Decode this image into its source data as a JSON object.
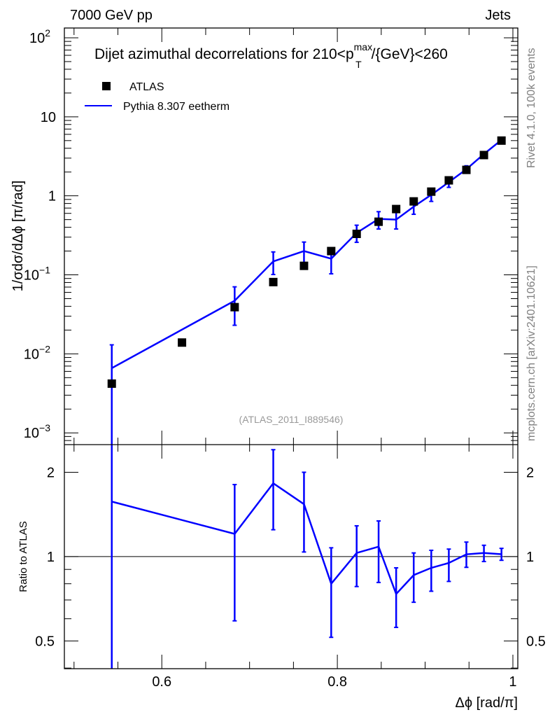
{
  "header": {
    "left": "7000 GeV pp",
    "right": "Jets"
  },
  "side": {
    "rivet": "Rivet 4.1.0,  100k events",
    "mcplots": "mcplots.cern.ch [arXiv:2401.10621]"
  },
  "chart_data": {
    "type": "scatter",
    "title": "Dijet azimuthal decorrelations for 210<p",
    "title_sup": "max",
    "title_sub": "T",
    "title_rest": "/{GeV}<260",
    "analysis": "(ATLAS_2011_I889546)",
    "xlabel": "Δϕ [rad/π]",
    "ylabel": "1/σdσ/dΔϕ [π/rad]",
    "ratio_ylabel": "Ratio to ATLAS",
    "xlim": [
      0.489,
      1.0056
    ],
    "ylim": [
      0.00071,
      133
    ],
    "ratio_ylim": [
      0.398,
      2.51
    ],
    "yscale": "log",
    "x_ticks": [
      {
        "v": 0.6,
        "label": "0.6"
      },
      {
        "v": 0.8,
        "label": "0.8"
      },
      {
        "v": 1.0,
        "label": "1"
      }
    ],
    "y_ticks": [
      {
        "v": 0.001,
        "m": "10",
        "e": "−3"
      },
      {
        "v": 0.01,
        "m": "10",
        "e": "−2"
      },
      {
        "v": 0.1,
        "m": "10",
        "e": "−1"
      },
      {
        "v": 1,
        "m": "1",
        "e": ""
      },
      {
        "v": 10,
        "m": "10",
        "e": ""
      },
      {
        "v": 100,
        "m": "10",
        "e": "2"
      }
    ],
    "ratio_ticks": [
      {
        "v": 0.5,
        "label": "0.5"
      },
      {
        "v": 1,
        "label": "1"
      },
      {
        "v": 2,
        "label": "2"
      }
    ],
    "legend": [
      {
        "name": "ATLAS",
        "marker": "square",
        "color": "#000000"
      },
      {
        "name": "Pythia 8.307 eetherm",
        "marker": "line",
        "color": "#0000ff"
      }
    ],
    "legend_position": "top-left",
    "data": {
      "name": "ATLAS",
      "x": [
        0.543,
        0.623,
        0.683,
        0.727,
        0.762,
        0.793,
        0.822,
        0.847,
        0.867,
        0.887,
        0.907,
        0.927,
        0.947,
        0.967,
        0.987
      ],
      "y": [
        0.0042,
        0.0139,
        0.039,
        0.081,
        0.13,
        0.2,
        0.33,
        0.47,
        0.68,
        0.85,
        1.13,
        1.57,
        2.13,
        3.28,
        5.0
      ]
    },
    "mc": {
      "name": "Pythia 8.307 eetherm",
      "x": [
        0.543,
        0.683,
        0.727,
        0.762,
        0.793,
        0.822,
        0.847,
        0.867,
        0.887,
        0.907,
        0.927,
        0.947,
        0.967,
        0.987
      ],
      "y": [
        0.0066,
        0.047,
        0.148,
        0.2,
        0.16,
        0.34,
        0.51,
        0.5,
        0.73,
        1.03,
        1.49,
        2.17,
        3.38,
        5.1
      ],
      "y_hi": [
        0.013,
        0.0705,
        0.195,
        0.26,
        0.215,
        0.425,
        0.63,
        0.62,
        0.876,
        1.19,
        1.67,
        2.4,
        3.6,
        5.35
      ],
      "y_lo": [
        0.0001,
        0.023,
        0.101,
        0.135,
        0.103,
        0.258,
        0.38,
        0.38,
        0.584,
        0.85,
        1.28,
        1.95,
        3.15,
        4.85
      ]
    },
    "colors": {
      "data": "#000000",
      "mc": "#0000ff",
      "side_text": "#808080"
    }
  }
}
